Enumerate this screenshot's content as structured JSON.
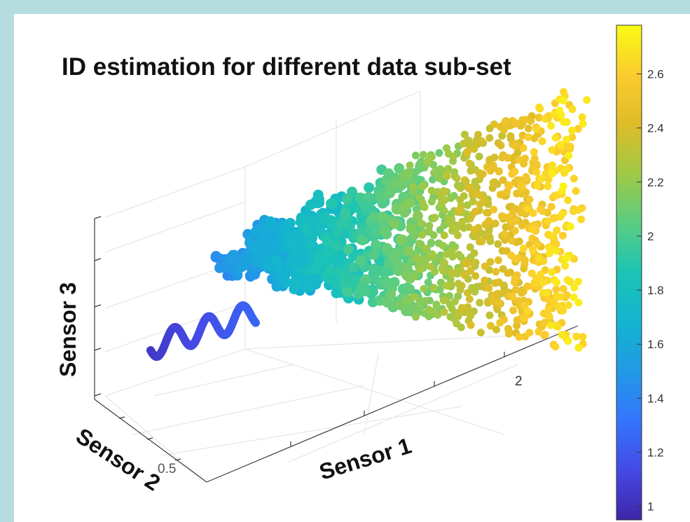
{
  "chart_data": {
    "type": "scatter",
    "title": "ID estimation for different data sub-set",
    "xlabel": "Sensor 1",
    "ylabel": "Sensor 2",
    "zlabel": "Sensor 3",
    "x_tick_labels": [
      "2"
    ],
    "y_tick_labels": [
      "0.5"
    ],
    "colorbar": {
      "ticks": [
        1,
        1.2,
        1.4,
        1.6,
        1.8,
        2,
        2.2,
        2.4,
        2.6
      ],
      "tick_labels": [
        "1",
        "1.2",
        "1.4",
        "1.6",
        "1.8",
        "2",
        "2.2",
        "2.4",
        "2.6"
      ],
      "range": [
        0.95,
        2.78
      ],
      "colormap": "parula"
    },
    "grid": true,
    "series": [
      {
        "description": "spiral trajectory",
        "id_value_range": [
          1.0,
          1.2
        ],
        "color": "#3e2fa8"
      },
      {
        "description": "point cloud",
        "id_value_range": [
          1.4,
          2.7
        ]
      }
    ]
  }
}
